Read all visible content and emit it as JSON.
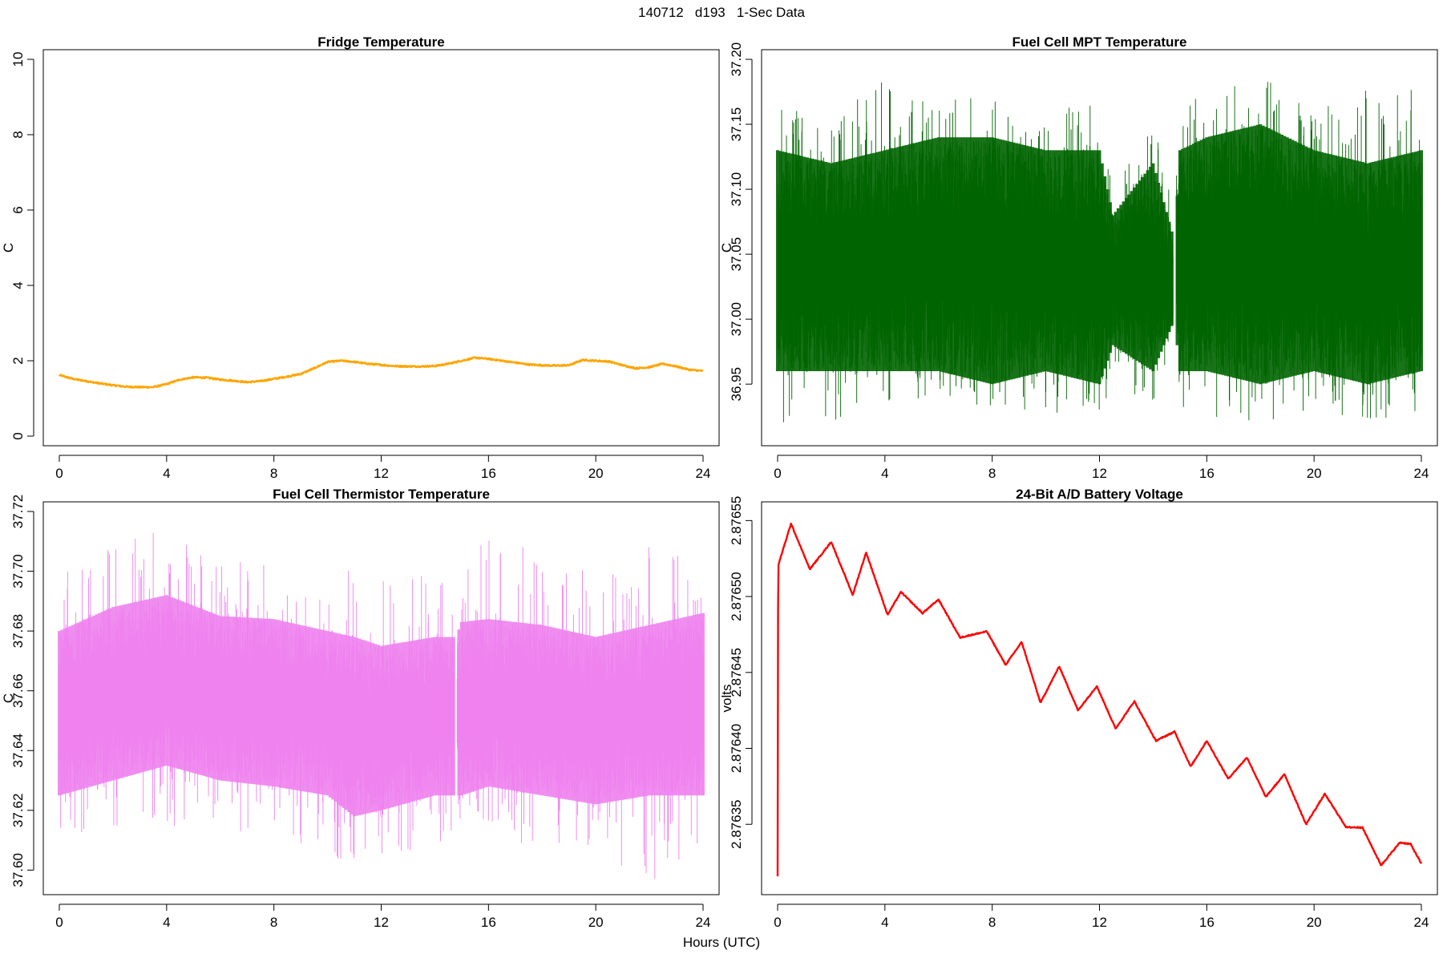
{
  "title": "140712   d193   1-Sec Data",
  "xlabel": "Hours (UTC)",
  "chart_data": [
    {
      "type": "line",
      "title": "Fridge Temperature",
      "ylabel": "C",
      "xlabel": "Hours (UTC)",
      "xlim": [
        0,
        24
      ],
      "ylim": [
        0,
        10
      ],
      "xticks": [
        0,
        4,
        8,
        12,
        16,
        20,
        24
      ],
      "yticks": [
        0,
        2,
        4,
        6,
        8,
        10
      ],
      "ytick_labels": [
        "0",
        "2",
        "4",
        "6",
        "8",
        "10"
      ],
      "color": "#FFA500",
      "noise": 0.02,
      "series": [
        {
          "x": [
            0,
            0.5,
            1,
            1.5,
            2,
            2.5,
            3,
            3.5,
            4,
            4.5,
            5,
            5.5,
            6,
            6.5,
            7,
            7.5,
            8,
            8.5,
            9,
            9.5,
            10,
            10.5,
            11,
            11.5,
            12,
            12.5,
            13,
            13.5,
            14,
            14.5,
            15,
            15.5,
            16,
            16.5,
            17,
            17.5,
            18,
            18.5,
            19,
            19.5,
            20,
            20.5,
            21,
            21.5,
            22,
            22.5,
            23,
            23.5,
            24
          ],
          "y": [
            1.62,
            1.52,
            1.46,
            1.4,
            1.35,
            1.31,
            1.3,
            1.3,
            1.38,
            1.5,
            1.56,
            1.55,
            1.5,
            1.47,
            1.43,
            1.46,
            1.52,
            1.58,
            1.65,
            1.8,
            1.97,
            2.0,
            1.97,
            1.92,
            1.89,
            1.86,
            1.85,
            1.85,
            1.86,
            1.92,
            2.0,
            2.08,
            2.05,
            2.0,
            1.95,
            1.9,
            1.88,
            1.87,
            1.88,
            2.02,
            2.0,
            1.98,
            1.88,
            1.8,
            1.83,
            1.92,
            1.85,
            1.76,
            1.73
          ]
        }
      ]
    },
    {
      "type": "line",
      "title": "Fuel Cell MPT Temperature",
      "ylabel": "C",
      "xlabel": "Hours (UTC)",
      "xlim": [
        0,
        24
      ],
      "ylim": [
        36.91,
        37.2
      ],
      "xticks": [
        0,
        4,
        8,
        12,
        16,
        20,
        24
      ],
      "yticks": [
        36.95,
        37.0,
        37.05,
        37.1,
        37.15,
        37.2
      ],
      "ytick_labels": [
        "36.95",
        "37.00",
        "37.05",
        "37.10",
        "37.15",
        "37.20"
      ],
      "color": "#006400",
      "series": [
        {
          "x": [
            0,
            2,
            4,
            6,
            8,
            10,
            12,
            12.5,
            14,
            14.8,
            15,
            16,
            18,
            20,
            22,
            24
          ],
          "low": [
            36.96,
            36.96,
            36.96,
            36.96,
            36.95,
            36.96,
            36.95,
            36.98,
            36.96,
            37.0,
            36.96,
            36.96,
            36.95,
            36.96,
            36.95,
            36.96
          ],
          "high": [
            37.13,
            37.12,
            37.13,
            37.14,
            37.14,
            37.13,
            37.13,
            37.08,
            37.12,
            37.06,
            37.13,
            37.14,
            37.15,
            37.13,
            37.12,
            37.13
          ],
          "min": [
            36.92,
            36.92,
            36.93,
            36.94,
            36.93,
            36.93,
            36.92,
            36.95,
            36.93,
            36.97,
            36.93,
            36.92,
            36.92,
            36.93,
            36.92,
            36.92
          ],
          "max": [
            37.17,
            37.15,
            37.19,
            37.17,
            37.18,
            37.16,
            37.17,
            37.1,
            37.15,
            37.09,
            37.17,
            37.17,
            37.19,
            37.16,
            37.19,
            37.18
          ]
        }
      ],
      "gaps": [
        {
          "from": 14.75,
          "to": 14.85
        }
      ]
    },
    {
      "type": "line",
      "title": "Fuel Cell Thermistor Temperature",
      "ylabel": "C",
      "xlabel": "Hours (UTC)",
      "xlim": [
        0,
        24
      ],
      "ylim": [
        37.595,
        37.72
      ],
      "xticks": [
        0,
        4,
        8,
        12,
        16,
        20,
        24
      ],
      "yticks": [
        37.6,
        37.62,
        37.64,
        37.66,
        37.68,
        37.7,
        37.72
      ],
      "ytick_labels": [
        "37.60",
        "37.62",
        "37.64",
        "37.66",
        "37.68",
        "37.70",
        "37.72"
      ],
      "color": "#EE82EE",
      "series": [
        {
          "x": [
            0,
            2,
            4,
            6,
            8,
            10,
            11,
            12,
            14,
            14.8,
            15,
            16,
            18,
            20,
            22,
            24
          ],
          "low": [
            37.625,
            37.63,
            37.635,
            37.63,
            37.628,
            37.625,
            37.618,
            37.62,
            37.625,
            37.625,
            37.625,
            37.628,
            37.625,
            37.622,
            37.625,
            37.625
          ],
          "high": [
            37.68,
            37.688,
            37.692,
            37.685,
            37.684,
            37.68,
            37.678,
            37.675,
            37.678,
            37.678,
            37.683,
            37.684,
            37.682,
            37.678,
            37.682,
            37.686
          ],
          "min": [
            37.61,
            37.612,
            37.615,
            37.61,
            37.612,
            37.605,
            37.6,
            37.605,
            37.608,
            37.61,
            37.61,
            37.61,
            37.608,
            37.605,
            37.595,
            37.61
          ],
          "max": [
            37.7,
            37.71,
            37.72,
            37.705,
            37.707,
            37.7,
            37.702,
            37.7,
            37.703,
            37.7,
            37.71,
            37.712,
            37.707,
            37.705,
            37.715,
            37.71
          ]
        }
      ],
      "gaps": [
        {
          "from": 14.72,
          "to": 14.82
        }
      ]
    },
    {
      "type": "line",
      "title": "24-Bit A/D Battery Voltage",
      "ylabel": "volts",
      "xlabel": "Hours (UTC)",
      "xlim": [
        0,
        24
      ],
      "ylim": [
        2.87631,
        2.876556
      ],
      "xticks": [
        0,
        4,
        8,
        12,
        16,
        20,
        24
      ],
      "yticks": [
        2.87635,
        2.8764,
        2.87645,
        2.8765,
        2.87655
      ],
      "ytick_labels": [
        "2.87635",
        "2.87640",
        "2.87645",
        "2.87650",
        "2.87655"
      ],
      "color": "#FF0000",
      "noise": 4e-07,
      "series": [
        {
          "x": [
            0,
            0.02,
            0.1,
            0.5,
            1.2,
            2.0,
            2.8,
            3.3,
            4.1,
            4.6,
            5.4,
            6.0,
            6.8,
            7.8,
            8.5,
            9.1,
            9.8,
            10.5,
            11.2,
            11.9,
            12.6,
            13.3,
            14.1,
            14.8,
            15.4,
            16.0,
            16.8,
            17.5,
            18.2,
            18.9,
            19.7,
            20.4,
            21.2,
            21.8,
            22.5,
            23.2,
            23.6,
            24.0
          ],
          "y": [
            2.876316,
            2.87652,
            2.876525,
            2.876548,
            2.876518,
            2.876536,
            2.876501,
            2.876529,
            2.876488,
            2.876503,
            2.876489,
            2.876498,
            2.876473,
            2.876477,
            2.876455,
            2.87647,
            2.87643,
            2.876454,
            2.876425,
            2.876441,
            2.876413,
            2.876431,
            2.876405,
            2.876411,
            2.876388,
            2.876405,
            2.87638,
            2.876394,
            2.876368,
            2.876383,
            2.87635,
            2.87637,
            2.876348,
            2.876348,
            2.876323,
            2.876338,
            2.876337,
            2.876324
          ]
        }
      ]
    }
  ]
}
